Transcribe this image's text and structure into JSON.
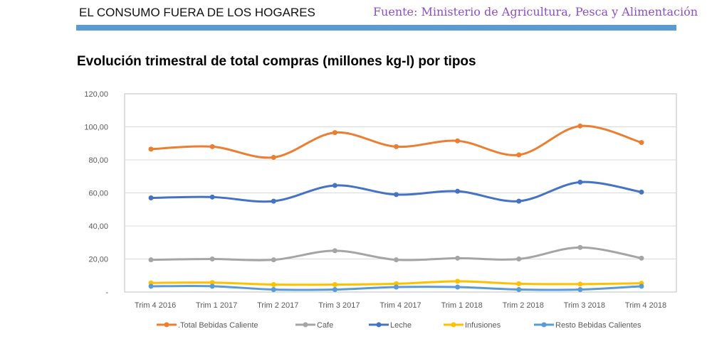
{
  "header": {
    "title": "EL CONSUMO FUERA DE LOS HOGARES",
    "source": "Fuente: Ministerio de Agricultura, Pesca y Alimentación",
    "accent": "#5b9bd5"
  },
  "chart_data": {
    "type": "line",
    "title": "Evolución trimestral de total compras (millones kg-l) por tipos",
    "categories": [
      "Trim 4 2016",
      "Trim 1 2017",
      "Trim 2 2017",
      "Trim 3 2017",
      "Trim 4 2017",
      "Trim 1 2018",
      "Trim 2 2018",
      "Trim 3 2018",
      "Trim 4 2018"
    ],
    "ylim": [
      0,
      120
    ],
    "yticks": [
      {
        "v": 0,
        "label": "-"
      },
      {
        "v": 20,
        "label": "20,00"
      },
      {
        "v": 40,
        "label": "40,00"
      },
      {
        "v": 60,
        "label": "60,00"
      },
      {
        "v": 80,
        "label": "80,00"
      },
      {
        "v": 100,
        "label": "100,00"
      },
      {
        "v": 120,
        "label": "120,00"
      }
    ],
    "grid": true,
    "legend": "bottom",
    "smooth": true,
    "series": [
      {
        "name": ".Total Bebidas Caliente",
        "color": "#ed7d31",
        "values": [
          86.5,
          88,
          81.5,
          96.5,
          88,
          91.5,
          83,
          100.5,
          90.5
        ]
      },
      {
        "name": "Cafe",
        "color": "#a5a5a5",
        "values": [
          19.5,
          20,
          19.5,
          25,
          19.5,
          20.5,
          20,
          27,
          20.5
        ]
      },
      {
        "name": "Leche",
        "color": "#4472c4",
        "values": [
          57,
          57.5,
          55,
          64.5,
          59,
          61,
          55,
          66.5,
          60.5
        ]
      },
      {
        "name": "Infusiones",
        "color": "#ffc000",
        "values": [
          5.5,
          5.7,
          4.5,
          4.5,
          5,
          6.5,
          5,
          4.8,
          5.3
        ]
      },
      {
        "name": "Resto Bebidas Calientes",
        "color": "#5b9bd5",
        "values": [
          3.5,
          3.5,
          1.5,
          1.5,
          3,
          3,
          1.5,
          1.5,
          3.5
        ]
      }
    ]
  }
}
